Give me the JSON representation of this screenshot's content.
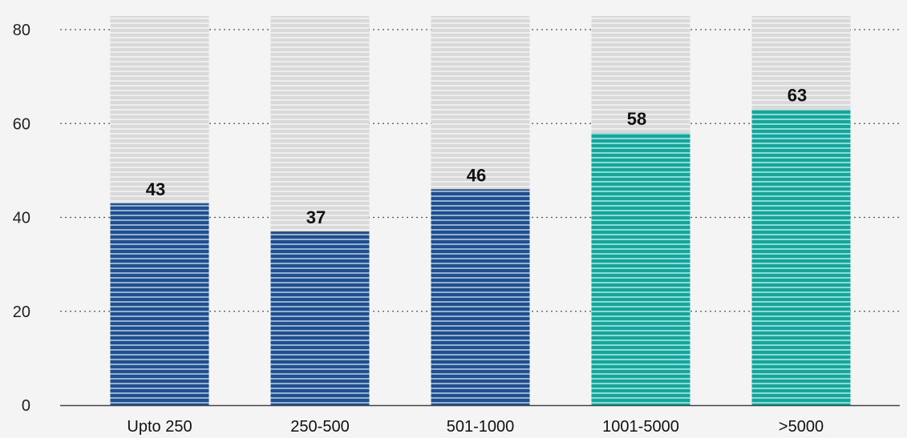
{
  "chart_data": {
    "type": "bar",
    "categories": [
      "Upto 250",
      "250-500",
      "501-1000",
      "1001-5000",
      ">5000"
    ],
    "values": [
      43,
      37,
      46,
      58,
      63
    ],
    "ylim": [
      0,
      80
    ],
    "yticks": [
      0,
      20,
      40,
      60,
      80
    ],
    "grid": true,
    "colors": {
      "bar_blue": "#1d4f91",
      "bar_teal": "#12a79d",
      "bar_background": "#d9d9d9",
      "bar_colors": [
        "#1d4f91",
        "#1d4f91",
        "#1d4f91",
        "#12a79d",
        "#12a79d"
      ]
    }
  }
}
